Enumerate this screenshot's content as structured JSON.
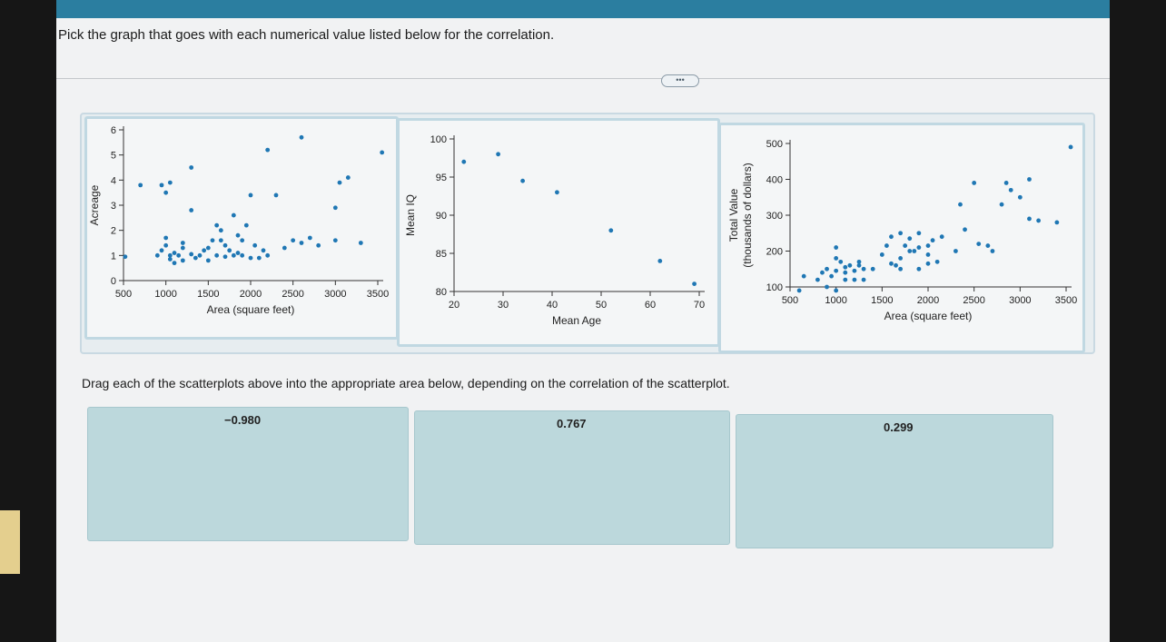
{
  "question": "Pick the graph that goes with each numerical value listed below for the correlation.",
  "more_label": "•••",
  "instruction": "Drag each of the scatterplots above into the appropriate area below, depending on the correlation of the scatterplot.",
  "drop_zones": [
    {
      "label": "−0.980"
    },
    {
      "label": "0.767"
    },
    {
      "label": "0.299"
    }
  ],
  "colors": {
    "accent_bar": "#2b7ea0",
    "dot": "#1f77b4",
    "drop_zone": "#bcd8dc"
  },
  "chart_data": [
    {
      "type": "scatter",
      "xlabel": "Area (square feet)",
      "ylabel": "Acreage",
      "xlim": [
        500,
        3500
      ],
      "ylim": [
        0,
        6
      ],
      "xticks": [
        500,
        1000,
        1500,
        2000,
        2500,
        3000,
        3500
      ],
      "yticks": [
        0,
        1,
        2,
        3,
        4,
        5,
        6
      ],
      "points": [
        [
          520,
          0.95
        ],
        [
          900,
          1.0
        ],
        [
          1050,
          1.0
        ],
        [
          1150,
          1.0
        ],
        [
          950,
          1.2
        ],
        [
          1100,
          1.1
        ],
        [
          1300,
          1.05
        ],
        [
          1400,
          1.0
        ],
        [
          1600,
          1.0
        ],
        [
          1700,
          0.95
        ],
        [
          1800,
          1.0
        ],
        [
          1900,
          1.0
        ],
        [
          2000,
          0.9
        ],
        [
          1000,
          1.4
        ],
        [
          1200,
          1.5
        ],
        [
          1500,
          1.3
        ],
        [
          1700,
          1.4
        ],
        [
          1900,
          1.6
        ],
        [
          2050,
          1.4
        ],
        [
          2150,
          1.2
        ],
        [
          1850,
          1.8
        ],
        [
          1650,
          2.0
        ],
        [
          1950,
          2.2
        ],
        [
          1550,
          1.6
        ],
        [
          1750,
          1.2
        ],
        [
          2400,
          1.3
        ],
        [
          2500,
          1.6
        ],
        [
          2600,
          1.5
        ],
        [
          2800,
          1.4
        ],
        [
          3300,
          1.5
        ],
        [
          1100,
          0.7
        ],
        [
          1200,
          0.8
        ],
        [
          1500,
          0.8
        ],
        [
          2100,
          0.9
        ],
        [
          1000,
          1.7
        ],
        [
          1200,
          1.3
        ],
        [
          1050,
          0.85
        ],
        [
          1350,
          0.9
        ],
        [
          1450,
          1.2
        ],
        [
          1850,
          1.1
        ],
        [
          1650,
          1.6
        ],
        [
          2200,
          1.0
        ],
        [
          1600,
          2.2
        ],
        [
          1800,
          2.6
        ],
        [
          2700,
          1.7
        ],
        [
          3000,
          1.6
        ],
        [
          700,
          3.8
        ],
        [
          950,
          3.8
        ],
        [
          1000,
          3.5
        ],
        [
          1050,
          3.9
        ],
        [
          1300,
          4.5
        ],
        [
          1300,
          2.8
        ],
        [
          2200,
          5.2
        ],
        [
          2000,
          3.4
        ],
        [
          2300,
          3.4
        ],
        [
          2600,
          5.7
        ],
        [
          3050,
          3.9
        ],
        [
          3150,
          4.1
        ],
        [
          3000,
          2.9
        ],
        [
          3550,
          5.1
        ]
      ]
    },
    {
      "type": "scatter",
      "xlabel": "Mean Age",
      "ylabel": "Mean IQ",
      "xlim": [
        20,
        70
      ],
      "ylim": [
        80,
        100
      ],
      "xticks": [
        20,
        30,
        40,
        50,
        60,
        70
      ],
      "yticks": [
        80,
        85,
        90,
        95,
        100
      ],
      "points": [
        [
          22,
          97
        ],
        [
          29,
          98
        ],
        [
          34,
          94.5
        ],
        [
          41,
          93
        ],
        [
          52,
          88
        ],
        [
          62,
          84
        ],
        [
          69,
          81
        ]
      ]
    },
    {
      "type": "scatter",
      "xlabel": "Area (square feet)",
      "ylabel": "Total Value (thousands of dollars)",
      "xlim": [
        500,
        3500
      ],
      "ylim": [
        100,
        500
      ],
      "xticks": [
        500,
        1000,
        1500,
        2000,
        2500,
        3000,
        3500
      ],
      "yticks": [
        100,
        200,
        300,
        400,
        500
      ],
      "points": [
        [
          600,
          90
        ],
        [
          650,
          130
        ],
        [
          800,
          120
        ],
        [
          850,
          140
        ],
        [
          900,
          150
        ],
        [
          950,
          130
        ],
        [
          1000,
          145
        ],
        [
          1050,
          170
        ],
        [
          1100,
          140
        ],
        [
          1150,
          160
        ],
        [
          1200,
          145
        ],
        [
          1250,
          160
        ],
        [
          1300,
          150
        ],
        [
          900,
          100
        ],
        [
          1000,
          90
        ],
        [
          1100,
          120
        ],
        [
          1200,
          120
        ],
        [
          1300,
          120
        ],
        [
          1000,
          180
        ],
        [
          1100,
          155
        ],
        [
          1250,
          170
        ],
        [
          1000,
          210
        ],
        [
          1400,
          150
        ],
        [
          1500,
          190
        ],
        [
          1600,
          165
        ],
        [
          1700,
          180
        ],
        [
          1800,
          200
        ],
        [
          1650,
          160
        ],
        [
          1550,
          215
        ],
        [
          1750,
          215
        ],
        [
          1800,
          235
        ],
        [
          1900,
          210
        ],
        [
          2000,
          190
        ],
        [
          1700,
          250
        ],
        [
          1900,
          250
        ],
        [
          2050,
          230
        ],
        [
          2150,
          240
        ],
        [
          2100,
          170
        ],
        [
          2000,
          165
        ],
        [
          1600,
          240
        ],
        [
          2300,
          200
        ],
        [
          1700,
          150
        ],
        [
          1900,
          150
        ],
        [
          2000,
          215
        ],
        [
          1850,
          200
        ],
        [
          2550,
          220
        ],
        [
          2650,
          215
        ],
        [
          2700,
          200
        ],
        [
          2400,
          260
        ],
        [
          2350,
          330
        ],
        [
          2500,
          390
        ],
        [
          2850,
          390
        ],
        [
          2900,
          370
        ],
        [
          3000,
          350
        ],
        [
          3100,
          290
        ],
        [
          3200,
          285
        ],
        [
          3400,
          280
        ],
        [
          3550,
          490
        ],
        [
          2800,
          330
        ],
        [
          3100,
          400
        ]
      ]
    }
  ]
}
